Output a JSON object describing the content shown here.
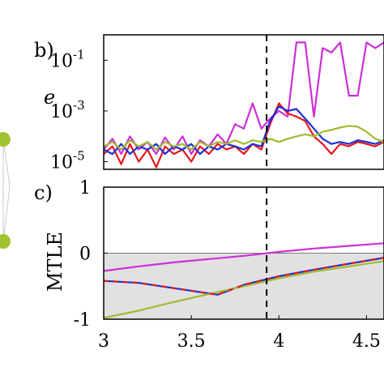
{
  "chart_data": [
    {
      "type": "line",
      "panel_label": "b)",
      "ylabel": "e",
      "y_scale": "log",
      "xlim": [
        3,
        4.6
      ],
      "ylim": [
        5e-06,
        1
      ],
      "y_ticks": [
        {
          "base": "10",
          "exp": "-5",
          "value": 1e-05
        },
        {
          "base": "10",
          "exp": "-3",
          "value": 0.001
        },
        {
          "base": "10",
          "exp": "-1",
          "value": 0.1
        }
      ],
      "vline_x": 3.93,
      "grid": false,
      "series": [
        {
          "color": "#cc2fd6",
          "x": [
            3.0,
            3.05,
            3.1,
            3.15,
            3.2,
            3.25,
            3.3,
            3.35,
            3.4,
            3.45,
            3.5,
            3.55,
            3.6,
            3.65,
            3.7,
            3.75,
            3.8,
            3.85,
            3.9,
            3.95,
            4.0,
            4.05,
            4.1,
            4.15,
            4.2,
            4.25,
            4.3,
            4.35,
            4.4,
            4.45,
            4.5,
            4.55,
            4.6
          ],
          "y": [
            3e-05,
            8e-05,
            2e-05,
            0.0001,
            3e-05,
            6e-05,
            2e-05,
            9e-05,
            3e-05,
            0.0001,
            2e-05,
            7e-05,
            4e-05,
            0.00012,
            5e-05,
            0.0003,
            0.0002,
            0.002,
            0.0002,
            0.0005,
            0.001,
            0.0006,
            0.5,
            0.5,
            0.0006,
            0.3,
            0.2,
            0.5,
            0.004,
            0.004,
            0.5,
            0.3,
            0.5
          ]
        },
        {
          "color": "#e8161a",
          "x": [
            3.0,
            3.05,
            3.1,
            3.15,
            3.2,
            3.25,
            3.3,
            3.35,
            3.4,
            3.45,
            3.5,
            3.55,
            3.6,
            3.65,
            3.7,
            3.75,
            3.8,
            3.85,
            3.9,
            3.95,
            4.0,
            4.05,
            4.1,
            4.15,
            4.2,
            4.25,
            4.3,
            4.35,
            4.4,
            4.45,
            4.5,
            4.55,
            4.6
          ],
          "y": [
            2e-05,
            4e-05,
            8e-06,
            5e-05,
            1e-05,
            3e-05,
            6e-06,
            4e-05,
            2e-05,
            3e-05,
            1e-05,
            4e-05,
            2e-05,
            5e-05,
            3e-05,
            4e-05,
            2e-05,
            5e-05,
            3e-05,
            0.0003,
            0.002,
            0.0008,
            0.0006,
            0.0004,
            0.0001,
            5e-05,
            2e-05,
            5e-05,
            4e-05,
            6e-05,
            5e-05,
            4e-05,
            6e-05
          ]
        },
        {
          "color": "#1a2fd8",
          "x": [
            3.0,
            3.05,
            3.1,
            3.15,
            3.2,
            3.25,
            3.3,
            3.35,
            3.4,
            3.45,
            3.5,
            3.55,
            3.6,
            3.65,
            3.7,
            3.75,
            3.8,
            3.85,
            3.9,
            3.95,
            4.0,
            4.05,
            4.1,
            4.15,
            4.2,
            4.25,
            4.3,
            4.35,
            4.4,
            4.45,
            4.5,
            4.55,
            4.6
          ],
          "y": [
            3e-05,
            2e-05,
            5e-05,
            2e-05,
            4e-05,
            3e-05,
            5e-05,
            2e-05,
            4e-05,
            3e-05,
            5e-05,
            2e-05,
            4e-05,
            3e-05,
            5e-05,
            4e-05,
            3e-05,
            5e-05,
            4e-05,
            0.0004,
            0.0015,
            0.001,
            0.0012,
            0.0005,
            0.0002,
            8e-05,
            5e-05,
            6e-05,
            5e-05,
            7e-05,
            6e-05,
            5e-05,
            7e-05
          ]
        },
        {
          "color": "#9ebc2d",
          "x": [
            3.0,
            3.05,
            3.1,
            3.15,
            3.2,
            3.25,
            3.3,
            3.35,
            3.4,
            3.45,
            3.5,
            3.55,
            3.6,
            3.65,
            3.7,
            3.75,
            3.8,
            3.85,
            3.9,
            3.95,
            4.0,
            4.05,
            4.1,
            4.15,
            4.2,
            4.25,
            4.3,
            4.35,
            4.4,
            4.45,
            4.5,
            4.55,
            4.6
          ],
          "y": [
            4e-05,
            6e-05,
            3e-05,
            7e-05,
            4e-05,
            6e-05,
            3e-05,
            6e-05,
            4e-05,
            5e-05,
            3e-05,
            6e-05,
            4e-05,
            6e-05,
            5e-05,
            7e-05,
            5e-05,
            7e-05,
            6e-05,
            8e-05,
            6e-05,
            8e-05,
            0.0001,
            0.00012,
            0.0001,
            0.00015,
            0.00018,
            0.00022,
            0.00026,
            0.00024,
            0.00015,
            8e-05,
            6e-05
          ]
        }
      ]
    },
    {
      "type": "line",
      "panel_label": "c)",
      "ylabel": "MTLE",
      "xlim": [
        3,
        4.6
      ],
      "ylim": [
        -1,
        1
      ],
      "x_ticks": [
        3,
        3.5,
        4,
        4.5
      ],
      "x_tick_labels": [
        "3",
        "3.5",
        "4",
        "4.5"
      ],
      "y_ticks": [
        -1,
        0,
        1
      ],
      "y_tick_labels": [
        "-1",
        "0",
        "1"
      ],
      "vline_x": 3.93,
      "shade_below": 0,
      "grid": false,
      "series": [
        {
          "color": "#cc2fd6",
          "x": [
            3.0,
            3.2,
            3.4,
            3.6,
            3.8,
            4.0,
            4.2,
            4.4,
            4.6
          ],
          "y": [
            -0.27,
            -0.2,
            -0.14,
            -0.09,
            -0.04,
            0.02,
            0.07,
            0.11,
            0.15
          ]
        },
        {
          "color": "#e8161a",
          "dashed": true,
          "x": [
            3.0,
            3.2,
            3.4,
            3.6,
            3.65,
            3.8,
            4.0,
            4.2,
            4.4,
            4.6
          ],
          "y": [
            -0.42,
            -0.45,
            -0.53,
            -0.61,
            -0.63,
            -0.48,
            -0.35,
            -0.25,
            -0.16,
            -0.07
          ]
        },
        {
          "color": "#1a2fd8",
          "x": [
            3.0,
            3.2,
            3.4,
            3.6,
            3.65,
            3.8,
            4.0,
            4.2,
            4.4,
            4.6
          ],
          "y": [
            -0.42,
            -0.45,
            -0.53,
            -0.61,
            -0.63,
            -0.48,
            -0.35,
            -0.25,
            -0.16,
            -0.07
          ]
        },
        {
          "color": "#9ebc2d",
          "x": [
            3.0,
            3.2,
            3.4,
            3.6,
            3.8,
            4.0,
            4.2,
            4.4,
            4.6
          ],
          "y": [
            -0.98,
            -0.87,
            -0.74,
            -0.62,
            -0.5,
            -0.38,
            -0.28,
            -0.2,
            -0.12
          ]
        }
      ]
    }
  ],
  "network_fragment": {
    "node_color": "#a3c22f",
    "edge_color": "#c8c8c8"
  }
}
